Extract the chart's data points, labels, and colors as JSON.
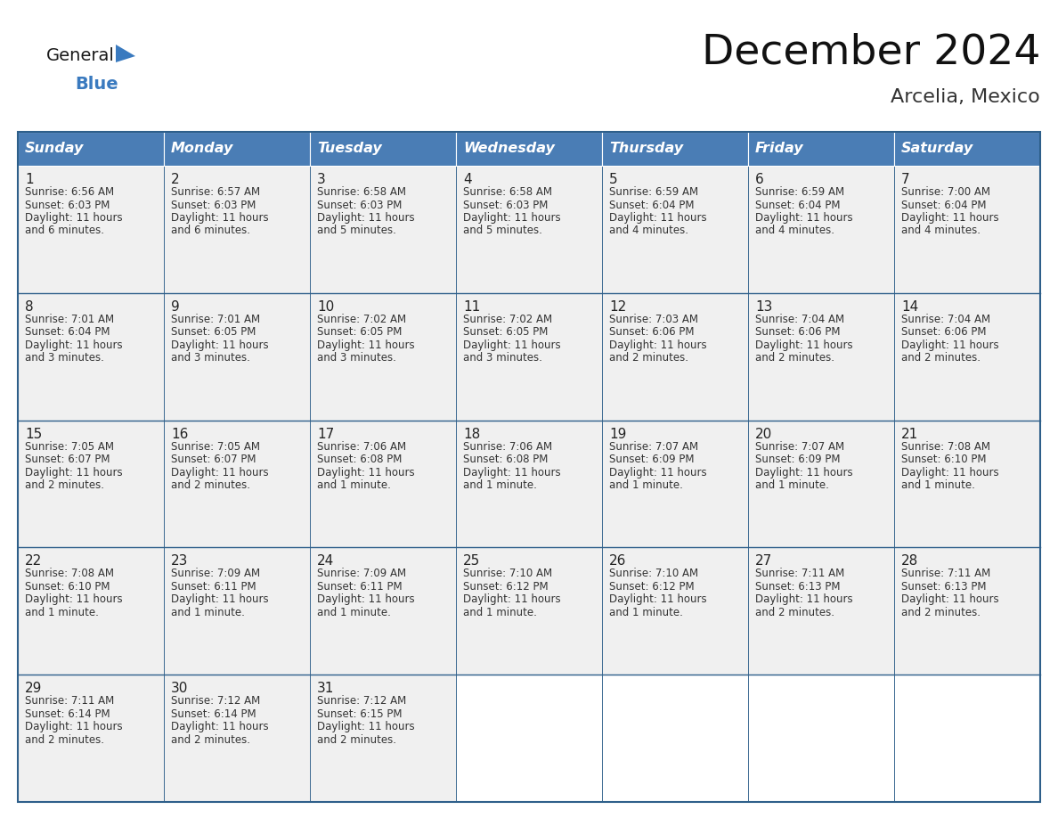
{
  "title": "December 2024",
  "subtitle": "Arcelia, Mexico",
  "header_color": "#4a7db5",
  "header_text_color": "#ffffff",
  "cell_bg_color": "#f0f0f0",
  "cell_bg_white": "#ffffff",
  "border_color": "#2e5f8a",
  "day_headers": [
    "Sunday",
    "Monday",
    "Tuesday",
    "Wednesday",
    "Thursday",
    "Friday",
    "Saturday"
  ],
  "title_fontsize": 34,
  "subtitle_fontsize": 16,
  "header_fontsize": 11.5,
  "day_num_fontsize": 11,
  "cell_fontsize": 8.5,
  "logo_fontsize_general": 14,
  "logo_fontsize_blue": 14,
  "logo_color1": "#1a1a1a",
  "logo_color2": "#3a7abf",
  "triangle_color": "#3a7abf",
  "days": [
    {
      "date": 1,
      "col": 0,
      "row": 0,
      "sunrise": "6:56 AM",
      "sunset": "6:03 PM",
      "daylight_extra": "6 minutes."
    },
    {
      "date": 2,
      "col": 1,
      "row": 0,
      "sunrise": "6:57 AM",
      "sunset": "6:03 PM",
      "daylight_extra": "6 minutes."
    },
    {
      "date": 3,
      "col": 2,
      "row": 0,
      "sunrise": "6:58 AM",
      "sunset": "6:03 PM",
      "daylight_extra": "5 minutes."
    },
    {
      "date": 4,
      "col": 3,
      "row": 0,
      "sunrise": "6:58 AM",
      "sunset": "6:03 PM",
      "daylight_extra": "5 minutes."
    },
    {
      "date": 5,
      "col": 4,
      "row": 0,
      "sunrise": "6:59 AM",
      "sunset": "6:04 PM",
      "daylight_extra": "4 minutes."
    },
    {
      "date": 6,
      "col": 5,
      "row": 0,
      "sunrise": "6:59 AM",
      "sunset": "6:04 PM",
      "daylight_extra": "4 minutes."
    },
    {
      "date": 7,
      "col": 6,
      "row": 0,
      "sunrise": "7:00 AM",
      "sunset": "6:04 PM",
      "daylight_extra": "4 minutes."
    },
    {
      "date": 8,
      "col": 0,
      "row": 1,
      "sunrise": "7:01 AM",
      "sunset": "6:04 PM",
      "daylight_extra": "3 minutes."
    },
    {
      "date": 9,
      "col": 1,
      "row": 1,
      "sunrise": "7:01 AM",
      "sunset": "6:05 PM",
      "daylight_extra": "3 minutes."
    },
    {
      "date": 10,
      "col": 2,
      "row": 1,
      "sunrise": "7:02 AM",
      "sunset": "6:05 PM",
      "daylight_extra": "3 minutes."
    },
    {
      "date": 11,
      "col": 3,
      "row": 1,
      "sunrise": "7:02 AM",
      "sunset": "6:05 PM",
      "daylight_extra": "3 minutes."
    },
    {
      "date": 12,
      "col": 4,
      "row": 1,
      "sunrise": "7:03 AM",
      "sunset": "6:06 PM",
      "daylight_extra": "2 minutes."
    },
    {
      "date": 13,
      "col": 5,
      "row": 1,
      "sunrise": "7:04 AM",
      "sunset": "6:06 PM",
      "daylight_extra": "2 minutes."
    },
    {
      "date": 14,
      "col": 6,
      "row": 1,
      "sunrise": "7:04 AM",
      "sunset": "6:06 PM",
      "daylight_extra": "2 minutes."
    },
    {
      "date": 15,
      "col": 0,
      "row": 2,
      "sunrise": "7:05 AM",
      "sunset": "6:07 PM",
      "daylight_extra": "2 minutes."
    },
    {
      "date": 16,
      "col": 1,
      "row": 2,
      "sunrise": "7:05 AM",
      "sunset": "6:07 PM",
      "daylight_extra": "2 minutes."
    },
    {
      "date": 17,
      "col": 2,
      "row": 2,
      "sunrise": "7:06 AM",
      "sunset": "6:08 PM",
      "daylight_extra": "1 minute."
    },
    {
      "date": 18,
      "col": 3,
      "row": 2,
      "sunrise": "7:06 AM",
      "sunset": "6:08 PM",
      "daylight_extra": "1 minute."
    },
    {
      "date": 19,
      "col": 4,
      "row": 2,
      "sunrise": "7:07 AM",
      "sunset": "6:09 PM",
      "daylight_extra": "1 minute."
    },
    {
      "date": 20,
      "col": 5,
      "row": 2,
      "sunrise": "7:07 AM",
      "sunset": "6:09 PM",
      "daylight_extra": "1 minute."
    },
    {
      "date": 21,
      "col": 6,
      "row": 2,
      "sunrise": "7:08 AM",
      "sunset": "6:10 PM",
      "daylight_extra": "1 minute."
    },
    {
      "date": 22,
      "col": 0,
      "row": 3,
      "sunrise": "7:08 AM",
      "sunset": "6:10 PM",
      "daylight_extra": "1 minute."
    },
    {
      "date": 23,
      "col": 1,
      "row": 3,
      "sunrise": "7:09 AM",
      "sunset": "6:11 PM",
      "daylight_extra": "1 minute."
    },
    {
      "date": 24,
      "col": 2,
      "row": 3,
      "sunrise": "7:09 AM",
      "sunset": "6:11 PM",
      "daylight_extra": "1 minute."
    },
    {
      "date": 25,
      "col": 3,
      "row": 3,
      "sunrise": "7:10 AM",
      "sunset": "6:12 PM",
      "daylight_extra": "1 minute."
    },
    {
      "date": 26,
      "col": 4,
      "row": 3,
      "sunrise": "7:10 AM",
      "sunset": "6:12 PM",
      "daylight_extra": "1 minute."
    },
    {
      "date": 27,
      "col": 5,
      "row": 3,
      "sunrise": "7:11 AM",
      "sunset": "6:13 PM",
      "daylight_extra": "2 minutes."
    },
    {
      "date": 28,
      "col": 6,
      "row": 3,
      "sunrise": "7:11 AM",
      "sunset": "6:13 PM",
      "daylight_extra": "2 minutes."
    },
    {
      "date": 29,
      "col": 0,
      "row": 4,
      "sunrise": "7:11 AM",
      "sunset": "6:14 PM",
      "daylight_extra": "2 minutes."
    },
    {
      "date": 30,
      "col": 1,
      "row": 4,
      "sunrise": "7:12 AM",
      "sunset": "6:14 PM",
      "daylight_extra": "2 minutes."
    },
    {
      "date": 31,
      "col": 2,
      "row": 4,
      "sunrise": "7:12 AM",
      "sunset": "6:15 PM",
      "daylight_extra": "2 minutes."
    }
  ]
}
